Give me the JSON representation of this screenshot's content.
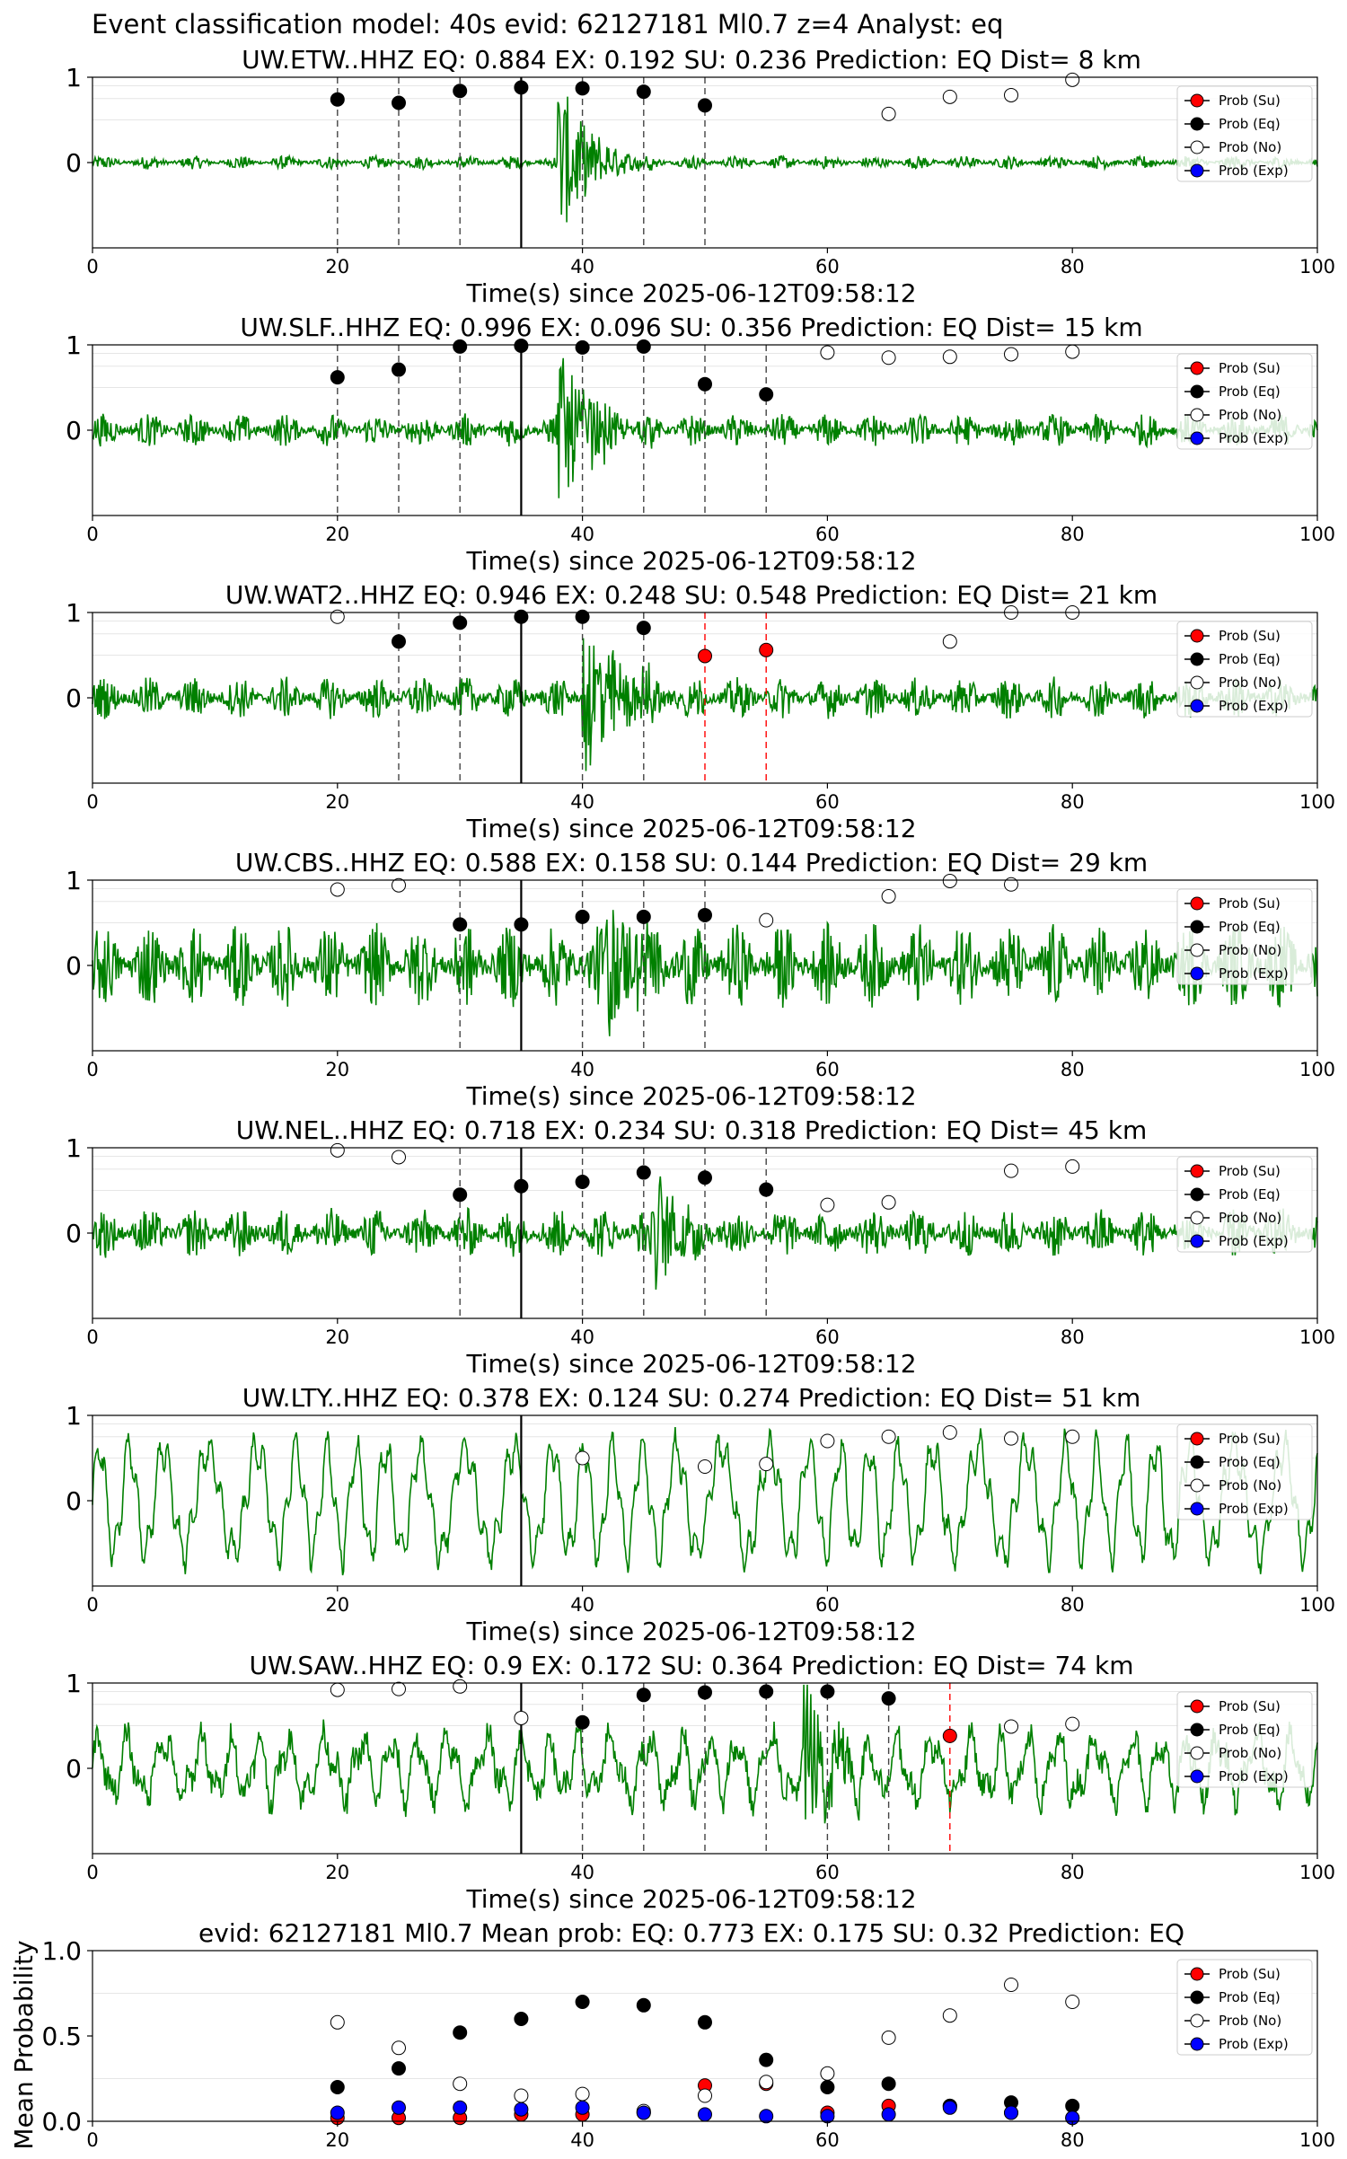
{
  "figure_title": "Event classification model: 40s evid: 62127181 Ml0.7 z=4 Analyst: eq",
  "colors": {
    "trace": "#008000",
    "su": "#ff0000",
    "eq": "#000000",
    "no": "#ffffff",
    "exp": "#0000ff"
  },
  "legend_labels": [
    "Prob (Su)",
    "Prob (Eq)",
    "Prob (No)",
    "Prob (Exp)"
  ],
  "xlabel": "Time(s) since 2025-06-12T09:58:12",
  "chart_data": [
    {
      "type": "scatter",
      "title": "UW.ETW..HHZ   EQ: 0.884  EX: 0.192  SU: 0.236   Prediction: EQ    Dist= 8 km",
      "xlim": [
        0,
        100
      ],
      "ylim": [
        -1,
        1
      ],
      "x_ticks": [
        0,
        20,
        40,
        60,
        80,
        100
      ],
      "y_ticks": [
        0,
        1
      ],
      "arrival": 35,
      "amp": 0.08,
      "burst": [
        38,
        46
      ],
      "burst_amp": 0.9,
      "wave": "noise",
      "markers": [
        {
          "x": 20,
          "y": 0.74,
          "kind": "eq"
        },
        {
          "x": 25,
          "y": 0.7,
          "kind": "eq"
        },
        {
          "x": 30,
          "y": 0.84,
          "kind": "eq"
        },
        {
          "x": 35,
          "y": 0.88,
          "kind": "eq"
        },
        {
          "x": 40,
          "y": 0.87,
          "kind": "eq"
        },
        {
          "x": 45,
          "y": 0.83,
          "kind": "eq"
        },
        {
          "x": 50,
          "y": 0.67,
          "kind": "eq"
        },
        {
          "x": 65,
          "y": 0.57,
          "kind": "no"
        },
        {
          "x": 70,
          "y": 0.77,
          "kind": "no"
        },
        {
          "x": 75,
          "y": 0.79,
          "kind": "no"
        },
        {
          "x": 80,
          "y": 0.97,
          "kind": "no"
        }
      ]
    },
    {
      "type": "scatter",
      "title": "UW.SLF..HHZ   EQ: 0.996  EX: 0.096  SU: 0.356   Prediction: EQ    Dist= 15 km",
      "xlim": [
        0,
        100
      ],
      "ylim": [
        -1,
        1
      ],
      "x_ticks": [
        0,
        20,
        40,
        60,
        80,
        100
      ],
      "y_ticks": [
        0,
        1
      ],
      "arrival": 35,
      "amp": 0.2,
      "burst": [
        38,
        46
      ],
      "burst_amp": 0.9,
      "wave": "noise",
      "markers": [
        {
          "x": 20,
          "y": 0.62,
          "kind": "eq"
        },
        {
          "x": 25,
          "y": 0.71,
          "kind": "eq"
        },
        {
          "x": 30,
          "y": 0.98,
          "kind": "eq"
        },
        {
          "x": 35,
          "y": 0.99,
          "kind": "eq"
        },
        {
          "x": 40,
          "y": 0.97,
          "kind": "eq"
        },
        {
          "x": 45,
          "y": 0.98,
          "kind": "eq"
        },
        {
          "x": 50,
          "y": 0.54,
          "kind": "eq"
        },
        {
          "x": 55,
          "y": 0.42,
          "kind": "eq"
        },
        {
          "x": 60,
          "y": 0.91,
          "kind": "no"
        },
        {
          "x": 65,
          "y": 0.85,
          "kind": "no"
        },
        {
          "x": 70,
          "y": 0.86,
          "kind": "no"
        },
        {
          "x": 75,
          "y": 0.89,
          "kind": "no"
        },
        {
          "x": 80,
          "y": 0.92,
          "kind": "no"
        }
      ]
    },
    {
      "type": "scatter",
      "title": "UW.WAT2..HHZ   EQ: 0.946  EX: 0.248  SU: 0.548   Prediction: EQ    Dist= 21 km",
      "xlim": [
        0,
        100
      ],
      "ylim": [
        -1,
        1
      ],
      "x_ticks": [
        0,
        20,
        40,
        60,
        80,
        100
      ],
      "y_ticks": [
        0,
        1
      ],
      "arrival": 35,
      "amp": 0.25,
      "burst": [
        40,
        50
      ],
      "burst_amp": 0.95,
      "wave": "noise",
      "markers": [
        {
          "x": 20,
          "y": 0.95,
          "kind": "no"
        },
        {
          "x": 25,
          "y": 0.66,
          "kind": "eq"
        },
        {
          "x": 30,
          "y": 0.88,
          "kind": "eq"
        },
        {
          "x": 35,
          "y": 0.95,
          "kind": "eq"
        },
        {
          "x": 40,
          "y": 0.95,
          "kind": "eq"
        },
        {
          "x": 45,
          "y": 0.82,
          "kind": "eq"
        },
        {
          "x": 50,
          "y": 0.49,
          "kind": "su"
        },
        {
          "x": 55,
          "y": 0.56,
          "kind": "su"
        },
        {
          "x": 70,
          "y": 0.66,
          "kind": "no"
        },
        {
          "x": 75,
          "y": 1.0,
          "kind": "no"
        },
        {
          "x": 80,
          "y": 1.0,
          "kind": "no"
        }
      ]
    },
    {
      "type": "scatter",
      "title": "UW.CBS..HHZ   EQ: 0.588  EX: 0.158  SU: 0.144   Prediction: EQ    Dist= 29 km",
      "xlim": [
        0,
        100
      ],
      "ylim": [
        -1,
        1
      ],
      "x_ticks": [
        0,
        20,
        40,
        60,
        80,
        100
      ],
      "y_ticks": [
        0,
        1
      ],
      "arrival": 35,
      "amp": 0.5,
      "burst": [
        42,
        48
      ],
      "burst_amp": 0.95,
      "wave": "noise",
      "markers": [
        {
          "x": 20,
          "y": 0.89,
          "kind": "no"
        },
        {
          "x": 25,
          "y": 0.94,
          "kind": "no"
        },
        {
          "x": 30,
          "y": 0.48,
          "kind": "eq"
        },
        {
          "x": 35,
          "y": 0.48,
          "kind": "eq"
        },
        {
          "x": 40,
          "y": 0.57,
          "kind": "eq"
        },
        {
          "x": 45,
          "y": 0.57,
          "kind": "eq"
        },
        {
          "x": 50,
          "y": 0.59,
          "kind": "eq"
        },
        {
          "x": 55,
          "y": 0.53,
          "kind": "no"
        },
        {
          "x": 65,
          "y": 0.81,
          "kind": "no"
        },
        {
          "x": 70,
          "y": 0.99,
          "kind": "no"
        },
        {
          "x": 75,
          "y": 0.95,
          "kind": "no"
        }
      ]
    },
    {
      "type": "scatter",
      "title": "UW.NEL..HHZ   EQ: 0.718  EX: 0.234  SU: 0.318   Prediction: EQ    Dist= 45 km",
      "xlim": [
        0,
        100
      ],
      "ylim": [
        -1,
        1
      ],
      "x_ticks": [
        0,
        20,
        40,
        60,
        80,
        100
      ],
      "y_ticks": [
        0,
        1
      ],
      "arrival": 35,
      "amp": 0.3,
      "burst": [
        46,
        52
      ],
      "burst_amp": 0.75,
      "wave": "noise",
      "markers": [
        {
          "x": 20,
          "y": 0.97,
          "kind": "no"
        },
        {
          "x": 25,
          "y": 0.89,
          "kind": "no"
        },
        {
          "x": 30,
          "y": 0.45,
          "kind": "eq"
        },
        {
          "x": 35,
          "y": 0.55,
          "kind": "eq"
        },
        {
          "x": 40,
          "y": 0.6,
          "kind": "eq"
        },
        {
          "x": 45,
          "y": 0.71,
          "kind": "eq"
        },
        {
          "x": 50,
          "y": 0.65,
          "kind": "eq"
        },
        {
          "x": 55,
          "y": 0.51,
          "kind": "eq"
        },
        {
          "x": 60,
          "y": 0.33,
          "kind": "no"
        },
        {
          "x": 65,
          "y": 0.36,
          "kind": "no"
        },
        {
          "x": 75,
          "y": 0.73,
          "kind": "no"
        },
        {
          "x": 80,
          "y": 0.78,
          "kind": "no"
        }
      ]
    },
    {
      "type": "scatter",
      "title": "UW.LTY..HHZ   EQ: 0.378  EX: 0.124  SU: 0.274   Prediction: EQ    Dist= 51 km",
      "xlim": [
        0,
        100
      ],
      "ylim": [
        -1,
        1
      ],
      "x_ticks": [
        0,
        20,
        40,
        60,
        80,
        100
      ],
      "y_ticks": [
        0,
        1
      ],
      "arrival": 35,
      "amp": 0.8,
      "burst": [
        0,
        0
      ],
      "burst_amp": 0,
      "wave": "sine",
      "markers": [
        {
          "x": 40,
          "y": 0.5,
          "kind": "no"
        },
        {
          "x": 50,
          "y": 0.4,
          "kind": "no"
        },
        {
          "x": 55,
          "y": 0.43,
          "kind": "no"
        },
        {
          "x": 60,
          "y": 0.7,
          "kind": "no"
        },
        {
          "x": 65,
          "y": 0.75,
          "kind": "no"
        },
        {
          "x": 70,
          "y": 0.8,
          "kind": "no"
        },
        {
          "x": 75,
          "y": 0.73,
          "kind": "no"
        },
        {
          "x": 80,
          "y": 0.75,
          "kind": "no"
        }
      ]
    },
    {
      "type": "scatter",
      "title": "UW.SAW..HHZ   EQ: 0.9  EX: 0.172  SU: 0.364   Prediction: EQ    Dist= 74 km",
      "xlim": [
        0,
        100
      ],
      "ylim": [
        -1,
        1
      ],
      "x_ticks": [
        0,
        20,
        40,
        60,
        80,
        100
      ],
      "y_ticks": [
        0,
        1
      ],
      "arrival": 35,
      "amp": 0.5,
      "burst": [
        58,
        66
      ],
      "burst_amp": 0.9,
      "wave": "mixed",
      "markers": [
        {
          "x": 20,
          "y": 0.92,
          "kind": "no"
        },
        {
          "x": 25,
          "y": 0.93,
          "kind": "no"
        },
        {
          "x": 30,
          "y": 0.96,
          "kind": "no"
        },
        {
          "x": 35,
          "y": 0.59,
          "kind": "no"
        },
        {
          "x": 40,
          "y": 0.54,
          "kind": "eq"
        },
        {
          "x": 45,
          "y": 0.86,
          "kind": "eq"
        },
        {
          "x": 50,
          "y": 0.89,
          "kind": "eq"
        },
        {
          "x": 55,
          "y": 0.9,
          "kind": "eq"
        },
        {
          "x": 60,
          "y": 0.9,
          "kind": "eq"
        },
        {
          "x": 65,
          "y": 0.82,
          "kind": "eq"
        },
        {
          "x": 70,
          "y": 0.38,
          "kind": "su"
        },
        {
          "x": 75,
          "y": 0.49,
          "kind": "no"
        },
        {
          "x": 80,
          "y": 0.52,
          "kind": "no"
        }
      ]
    },
    {
      "type": "scatter",
      "title": "evid: 62127181  Ml0.7   Mean prob:   EQ: 0.773  EX: 0.175  SU: 0.32   Prediction: EQ",
      "ylabel": "Mean Probability",
      "xlim": [
        0,
        100
      ],
      "ylim": [
        0,
        1
      ],
      "x_ticks": [
        0,
        20,
        40,
        60,
        80,
        100
      ],
      "y_ticks": [
        0.0,
        0.5,
        1.0
      ],
      "y_tick_labels": [
        "0.0",
        "0.5",
        "1.0"
      ],
      "x": [
        20,
        25,
        30,
        35,
        40,
        45,
        50,
        55,
        60,
        65,
        70,
        75,
        80
      ],
      "series": [
        {
          "name": "Prob (Su)",
          "kind": "su",
          "values": [
            0.02,
            0.02,
            0.02,
            0.04,
            0.04,
            0.05,
            0.21,
            0.22,
            0.05,
            0.09,
            0.09,
            0.05,
            0.02
          ]
        },
        {
          "name": "Prob (Eq)",
          "kind": "eq",
          "values": [
            0.2,
            0.31,
            0.52,
            0.6,
            0.7,
            0.68,
            0.58,
            0.36,
            0.2,
            0.22,
            0.09,
            0.11,
            0.09
          ]
        },
        {
          "name": "Prob (No)",
          "kind": "no",
          "values": [
            0.58,
            0.43,
            0.22,
            0.15,
            0.16,
            0.06,
            0.15,
            0.23,
            0.28,
            0.49,
            0.62,
            0.8,
            0.7
          ]
        },
        {
          "name": "Prob (Exp)",
          "kind": "exp",
          "values": [
            0.05,
            0.08,
            0.08,
            0.07,
            0.08,
            0.05,
            0.04,
            0.03,
            0.03,
            0.04,
            0.08,
            0.05,
            0.02
          ]
        }
      ]
    }
  ]
}
